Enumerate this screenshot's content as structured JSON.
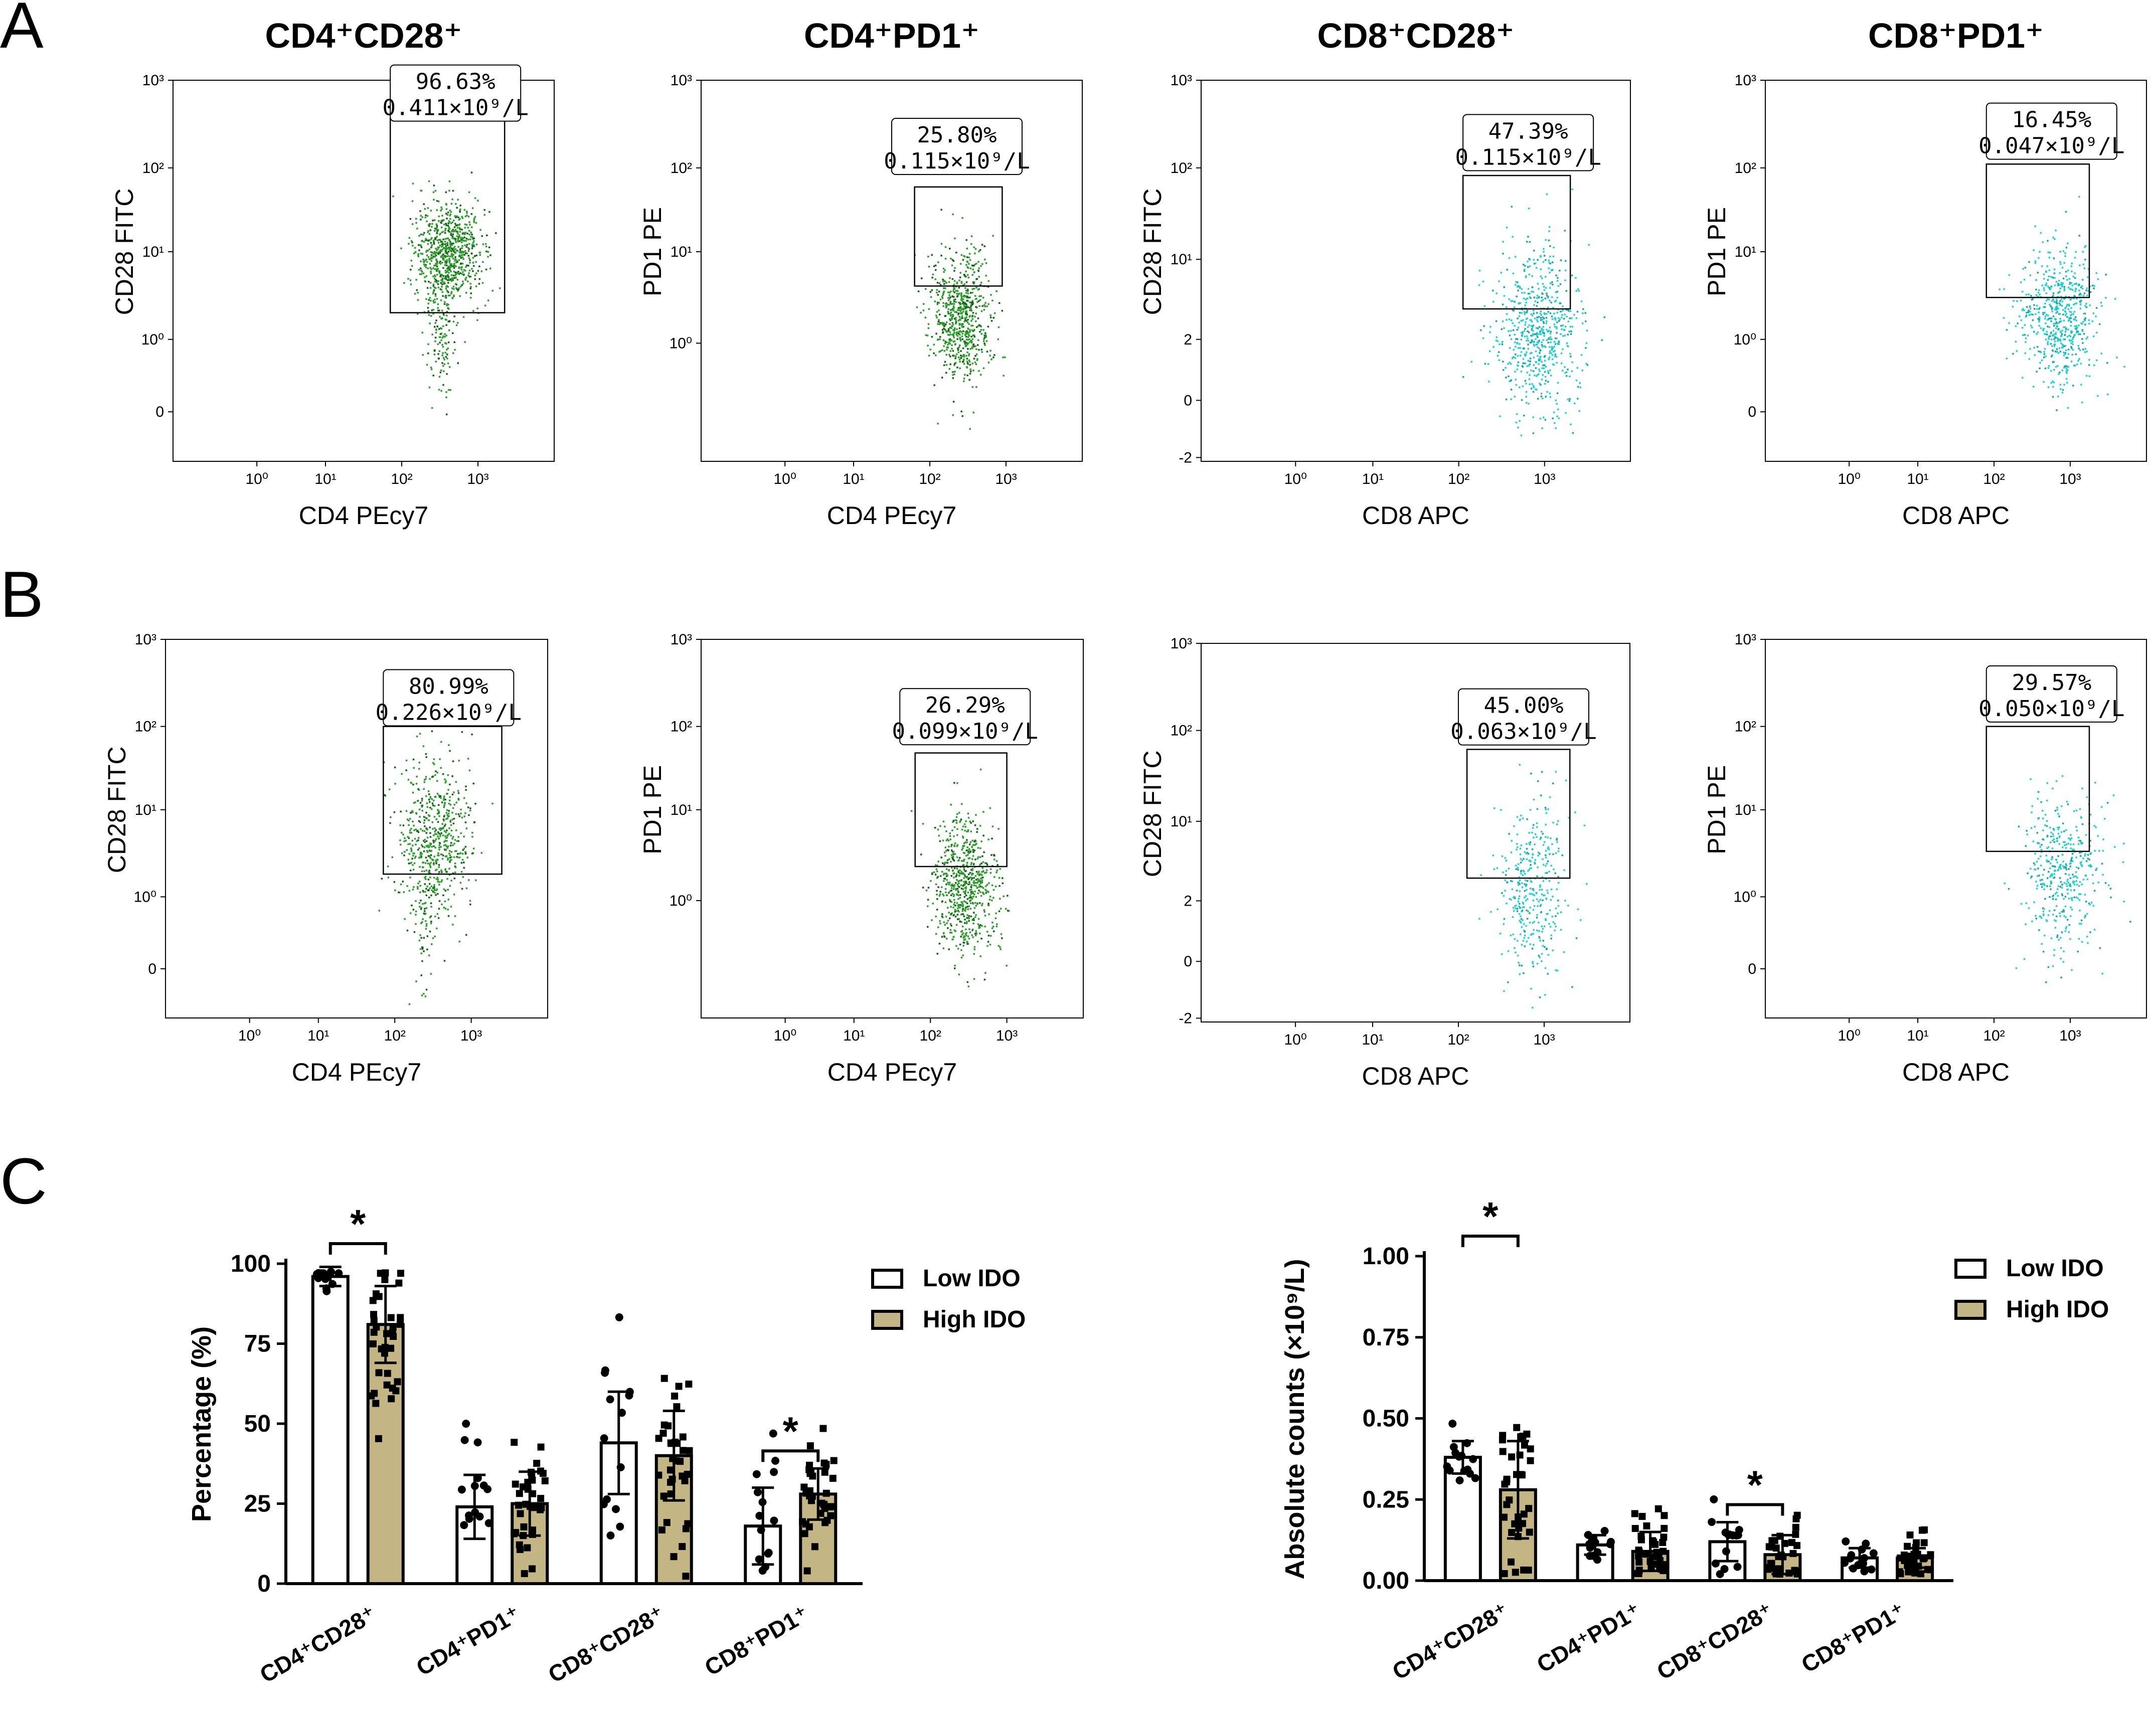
{
  "figure": {
    "panel_letters": [
      "A",
      "B",
      "C"
    ]
  },
  "chart_data": [
    {
      "type": "scatter",
      "id": "A1",
      "panel": "A",
      "title": "CD4⁺CD28⁺",
      "xlabel": "CD4 PEcy7",
      "ylabel": "CD28 FITC",
      "x_ticks": [
        "10⁰",
        "10¹",
        "10²",
        "10³"
      ],
      "y_ticks": [
        "10³",
        "10²",
        "10¹",
        "10⁰",
        "0"
      ],
      "gate": {
        "percent": "96.63%",
        "count": "0.411×10⁹/L"
      },
      "color": "#2ca02c"
    },
    {
      "type": "scatter",
      "id": "A2",
      "panel": "A",
      "title": "CD4⁺PD1⁺",
      "xlabel": "CD4 PEcy7",
      "ylabel": "PD1 PE",
      "x_ticks": [
        "10⁰",
        "10¹",
        "10²",
        "10³"
      ],
      "y_ticks": [
        "10³",
        "10²",
        "10¹",
        "10⁰"
      ],
      "gate": {
        "percent": "25.80%",
        "count": "0.115×10⁹/L"
      },
      "color": "#2ca02c"
    },
    {
      "type": "scatter",
      "id": "A3",
      "panel": "A",
      "title": "CD8⁺CD28⁺",
      "xlabel": "CD8 APC",
      "ylabel": "CD28 FITC",
      "x_ticks": [
        "10⁰",
        "10¹",
        "10²",
        "10³"
      ],
      "y_ticks": [
        "10³",
        "10²",
        "10¹",
        "2",
        "0",
        "-2"
      ],
      "gate": {
        "percent": "47.39%",
        "count": "0.115×10⁹/L"
      },
      "color": "#22d3d3"
    },
    {
      "type": "scatter",
      "id": "A4",
      "panel": "A",
      "title": "CD8⁺PD1⁺",
      "xlabel": "CD8 APC",
      "ylabel": "PD1 PE",
      "x_ticks": [
        "10⁰",
        "10¹",
        "10²",
        "10³"
      ],
      "y_ticks": [
        "10³",
        "10²",
        "10¹",
        "10⁰",
        "0"
      ],
      "gate": {
        "percent": "16.45%",
        "count": "0.047×10⁹/L"
      },
      "color": "#22d3d3"
    },
    {
      "type": "scatter",
      "id": "B1",
      "panel": "B",
      "xlabel": "CD4 PEcy7",
      "ylabel": "CD28 FITC",
      "x_ticks": [
        "10⁰",
        "10¹",
        "10²",
        "10³"
      ],
      "y_ticks": [
        "10³",
        "10²",
        "10¹",
        "10⁰",
        "0"
      ],
      "gate": {
        "percent": "80.99%",
        "count": "0.226×10⁹/L"
      },
      "color": "#2ca02c"
    },
    {
      "type": "scatter",
      "id": "B2",
      "panel": "B",
      "xlabel": "CD4 PEcy7",
      "ylabel": "PD1 PE",
      "x_ticks": [
        "10⁰",
        "10¹",
        "10²",
        "10³"
      ],
      "y_ticks": [
        "10³",
        "10²",
        "10¹",
        "10⁰"
      ],
      "gate": {
        "percent": "26.29%",
        "count": "0.099×10⁹/L"
      },
      "color": "#2ca02c"
    },
    {
      "type": "scatter",
      "id": "B3",
      "panel": "B",
      "xlabel": "CD8 APC",
      "ylabel": "CD28 FITC",
      "x_ticks": [
        "10⁰",
        "10¹",
        "10²",
        "10³"
      ],
      "y_ticks": [
        "10³",
        "10²",
        "10¹",
        "2",
        "0",
        "-2"
      ],
      "gate": {
        "percent": "45.00%",
        "count": "0.063×10⁹/L"
      },
      "color": "#22d3d3"
    },
    {
      "type": "scatter",
      "id": "B4",
      "panel": "B",
      "xlabel": "CD8 APC",
      "ylabel": "PD1 PE",
      "x_ticks": [
        "10⁰",
        "10¹",
        "10²",
        "10³"
      ],
      "y_ticks": [
        "10³",
        "10²",
        "10¹",
        "10⁰",
        "0"
      ],
      "gate": {
        "percent": "29.57%",
        "count": "0.050×10⁹/L"
      },
      "color": "#22d3d3"
    },
    {
      "type": "bar",
      "id": "C1",
      "panel": "C",
      "ylabel": "Percentage (%)",
      "ylim": [
        0,
        100
      ],
      "y_ticks": [
        0,
        25,
        50,
        75,
        100
      ],
      "categories": [
        "CD4⁺CD28⁺",
        "CD4⁺PD1⁺",
        "CD8⁺CD28⁺",
        "CD8⁺PD1⁺"
      ],
      "series": [
        {
          "name": "Low IDO",
          "values": [
            96,
            24,
            44,
            18
          ],
          "sd": [
            3,
            10,
            16,
            12
          ],
          "color": "#ffffff"
        },
        {
          "name": "High IDO",
          "values": [
            81,
            25,
            40,
            28
          ],
          "sd": [
            12,
            10,
            14,
            8
          ],
          "color": "#c4b584"
        }
      ],
      "significance": [
        {
          "category_index": 0,
          "label": "*"
        },
        {
          "category_index": 3,
          "label": "*"
        }
      ]
    },
    {
      "type": "bar",
      "id": "C2",
      "panel": "C",
      "ylabel": "Absolute counts (×10⁹/L)",
      "ylim": [
        0,
        1.0
      ],
      "y_ticks": [
        "0.00",
        "0.25",
        "0.50",
        "0.75",
        "1.00"
      ],
      "categories": [
        "CD4⁺CD28⁺",
        "CD4⁺PD1⁺",
        "CD8⁺CD28⁺",
        "CD8⁺PD1⁺"
      ],
      "series": [
        {
          "name": "Low IDO",
          "values": [
            0.38,
            0.11,
            0.12,
            0.07
          ],
          "sd": [
            0.05,
            0.03,
            0.06,
            0.03
          ],
          "color": "#ffffff"
        },
        {
          "name": "High IDO",
          "values": [
            0.28,
            0.09,
            0.08,
            0.07
          ],
          "sd": [
            0.15,
            0.06,
            0.06,
            0.03
          ],
          "color": "#c4b584"
        }
      ],
      "significance": [
        {
          "category_index": 0,
          "label": "*"
        },
        {
          "category_index": 2,
          "label": "*"
        }
      ]
    }
  ]
}
